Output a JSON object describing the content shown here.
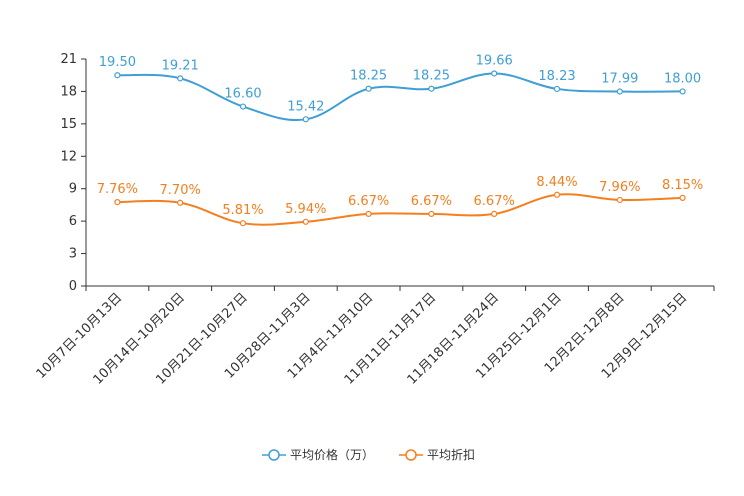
{
  "chart_data": {
    "type": "line",
    "title": "",
    "xlabel": "",
    "ylabel": "",
    "ylim": [
      0,
      21
    ],
    "yticks": [
      0,
      3,
      6,
      9,
      12,
      15,
      18,
      21
    ],
    "grid": false,
    "legend_position": "bottom-center",
    "categories": [
      "10月7日-10月13日",
      "10月14日-10月20日",
      "10月21日-10月27日",
      "10月28日-11月3日",
      "11月4日-11月10日",
      "11月11日-11月17日",
      "11月18日-11月24日",
      "11月25日-12月1日",
      "12月2日-12月8日",
      "12月9日-12月15日"
    ],
    "series": [
      {
        "name": "平均价格（万）",
        "color": "#3f9fd4",
        "values": [
          19.5,
          19.21,
          16.6,
          15.42,
          18.25,
          18.25,
          19.66,
          18.23,
          17.99,
          18.0
        ],
        "labels": [
          "19.50",
          "19.21",
          "16.60",
          "15.42",
          "18.25",
          "18.25",
          "19.66",
          "18.23",
          "17.99",
          "18.00"
        ]
      },
      {
        "name": "平均折扣",
        "color": "#f47f1f",
        "values": [
          7.76,
          7.7,
          5.81,
          5.94,
          6.67,
          6.67,
          6.67,
          8.44,
          7.96,
          8.15
        ],
        "labels": [
          "7.76%",
          "7.70%",
          "5.81%",
          "5.94%",
          "6.67%",
          "6.67%",
          "6.67%",
          "8.44%",
          "7.96%",
          "8.15%"
        ]
      }
    ]
  }
}
